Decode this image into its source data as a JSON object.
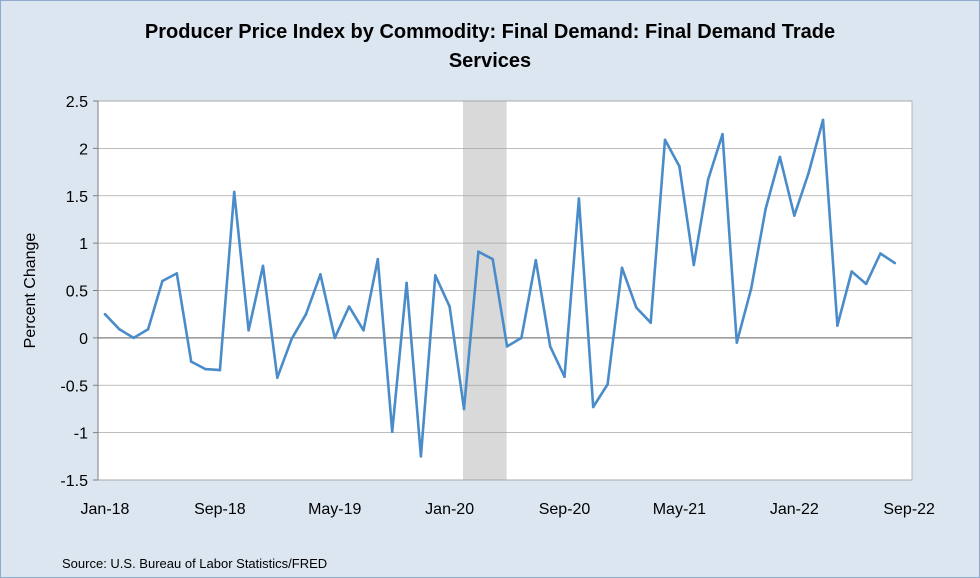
{
  "chart_data": {
    "type": "line",
    "title": "Producer Price Index by Commodity: Final Demand: Final Demand Trade Services",
    "title_line1": "Producer Price Index by Commodity: Final Demand: Final Demand Trade",
    "title_line2": "Services",
    "ylabel": "Percent Change",
    "xlabel": "",
    "ylim": [
      -1.5,
      2.5
    ],
    "yticks": [
      2.5,
      2,
      1.5,
      1,
      0.5,
      0,
      -0.5,
      -1,
      -1.5
    ],
    "ytick_labels": [
      "2.5",
      "2",
      "1.5",
      "1",
      "0.5",
      "0",
      "-0.5",
      "-1",
      "-1.5"
    ],
    "xtick_labels": [
      "Jan-18",
      "Sep-18",
      "May-19",
      "Jan-20",
      "Sep-20",
      "May-21",
      "Jan-22",
      "Sep-22"
    ],
    "xtick_index": [
      0,
      8,
      16,
      24,
      32,
      40,
      48,
      56
    ],
    "recession": {
      "start_index": 25,
      "end_index": 28
    },
    "grid": true,
    "line_color": "#4a8cc9",
    "series": [
      {
        "name": "Final Demand Trade Services",
        "values": [
          0.25,
          0.09,
          0.0,
          0.09,
          0.6,
          0.68,
          -0.25,
          -0.33,
          -0.34,
          1.54,
          0.08,
          0.76,
          -0.42,
          -0.01,
          0.25,
          0.67,
          0.0,
          0.33,
          0.08,
          0.83,
          -0.99,
          0.58,
          -1.25,
          0.66,
          0.33,
          -0.75,
          0.91,
          0.83,
          -0.09,
          0.0,
          0.82,
          -0.09,
          -0.41,
          1.47,
          -0.73,
          -0.49,
          0.74,
          0.32,
          0.16,
          2.09,
          1.81,
          0.77,
          1.67,
          2.15,
          -0.05,
          0.52,
          1.36,
          1.91,
          1.29,
          1.74,
          2.3,
          0.13,
          0.7,
          0.57,
          0.89,
          0.79
        ]
      }
    ]
  },
  "source": "Source: U.S. Bureau of Labor Statistics/FRED"
}
